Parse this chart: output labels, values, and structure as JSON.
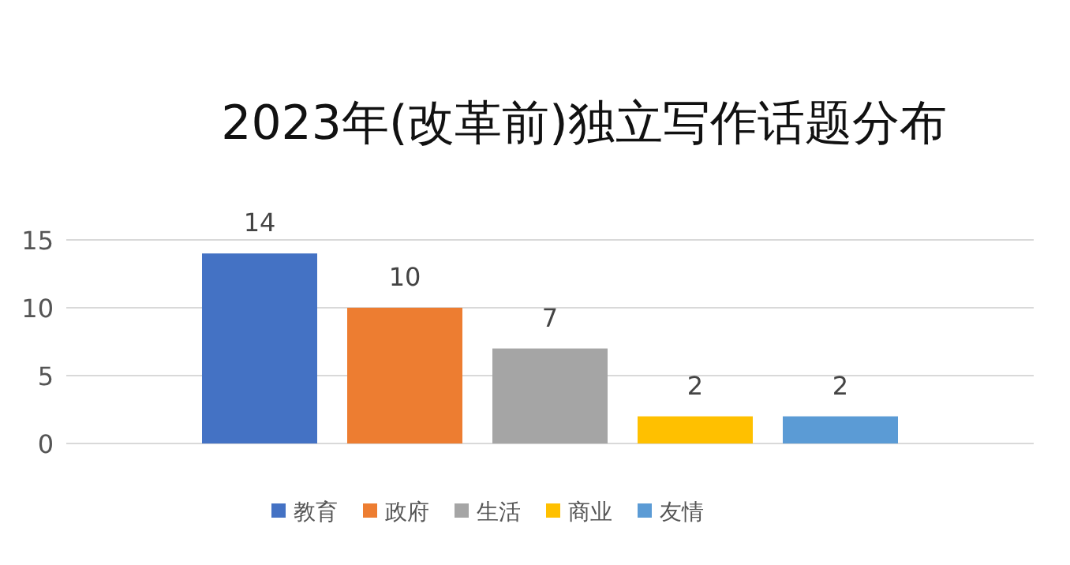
{
  "chart_data": {
    "type": "bar",
    "title": "2023年(改革前)独立写作话题分布",
    "categories": [
      null
    ],
    "series": [
      {
        "name": "教育",
        "color": "#4472c4",
        "values": [
          14
        ]
      },
      {
        "name": "政府",
        "color": "#ed7d31",
        "values": [
          10
        ]
      },
      {
        "name": "生活",
        "color": "#a5a5a5",
        "values": [
          7
        ]
      },
      {
        "name": "商业",
        "color": "#ffc000",
        "values": [
          2
        ]
      },
      {
        "name": "友情",
        "color": "#5b9bd5",
        "values": [
          2
        ]
      }
    ],
    "ylim": [
      0,
      15
    ],
    "yticks": [
      0,
      5,
      10,
      15
    ],
    "grid": "y",
    "data_labels": true,
    "legend": "bottom"
  }
}
